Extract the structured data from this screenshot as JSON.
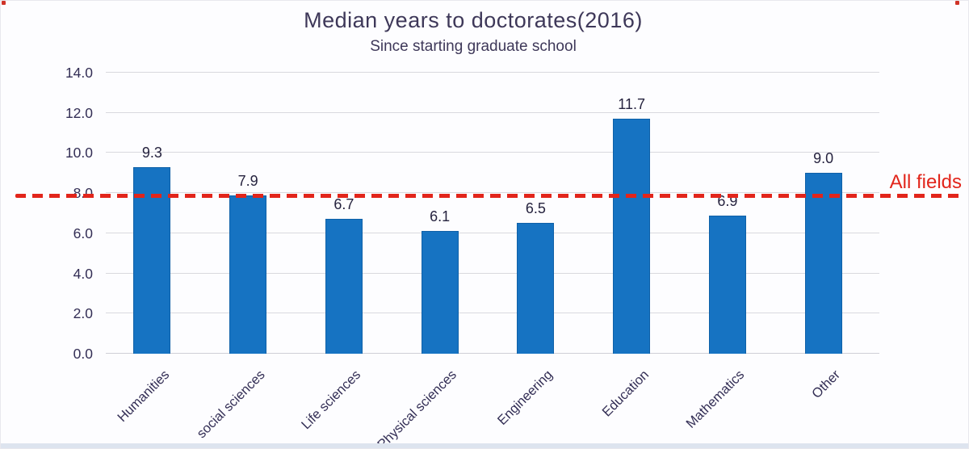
{
  "chart_data": {
    "type": "bar",
    "title": "Median years to doctorates(2016)",
    "subtitle": "Since starting graduate school",
    "categories": [
      "Humanities",
      "social sciences",
      "Life sciences",
      "Physical sciences",
      "Engineering",
      "Education",
      "Mathematics",
      "Other"
    ],
    "values": [
      9.3,
      7.9,
      6.7,
      6.1,
      6.5,
      11.7,
      6.9,
      9.0
    ],
    "xlabel": "",
    "ylabel": "",
    "ylim": [
      0,
      14
    ],
    "yticks": [
      0,
      2,
      4,
      6,
      8,
      10,
      12,
      14
    ],
    "ytick_labels": [
      "0.0",
      "2.0",
      "4.0",
      "6.0",
      "8.0",
      "10.0",
      "12.0",
      "14.0"
    ],
    "grid": true,
    "legend": "none",
    "bar_color": "#1673c2",
    "bar_edge_color": "#0f61a8",
    "gridline_color": "#d9d9de",
    "title_color": "#3e3859",
    "tick_color": "#332e55",
    "reference_line": {
      "value": 7.9,
      "label": "All fields",
      "color": "#e2251b",
      "style": "dashed"
    }
  }
}
